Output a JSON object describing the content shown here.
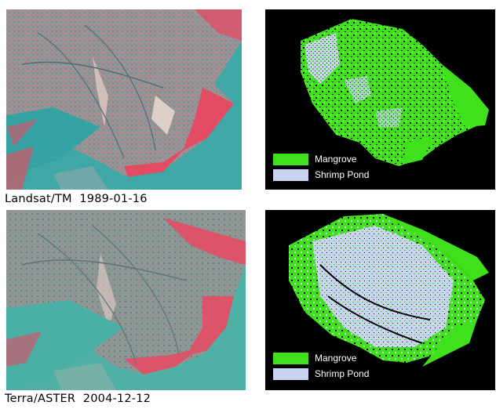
{
  "panels": [
    {
      "caption": "Landsat/TM  1989-01-16",
      "legend": [
        {
          "label": "Mangrove",
          "color": "#3fe01c"
        },
        {
          "label": "Shrimp Pond",
          "color": "#c8d4f2"
        }
      ]
    },
    {
      "caption": "Terra/ASTER  2004-12-12",
      "legend": [
        {
          "label": "Mangrove",
          "color": "#3fe01c"
        },
        {
          "label": "Shrimp Pond",
          "color": "#c8d4f2"
        }
      ]
    }
  ],
  "colors": {
    "water": "#3aa7a6",
    "land_dry": "#8d9a9b",
    "mangrove_false_color": "#e0566a",
    "sediment": "#e8bfb9",
    "classification_background": "#000000",
    "mangrove_class": "#3fe01c",
    "shrimp_pond_class": "#c8d4f2"
  }
}
